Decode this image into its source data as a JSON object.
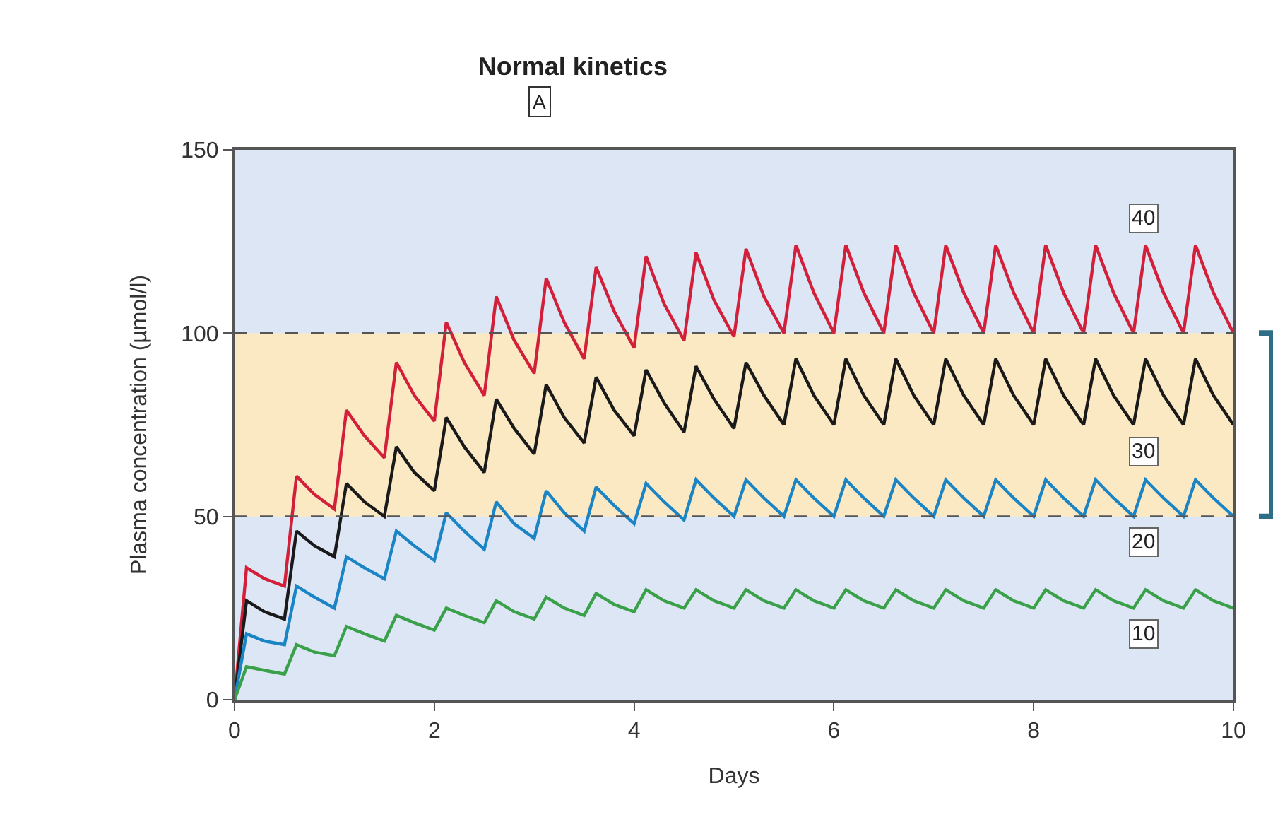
{
  "chart_data": {
    "type": "line",
    "title": "Normal kinetics",
    "xlabel": "Days",
    "ylabel": "Plasma concentration (µmol/l)",
    "annotations": [
      "A"
    ],
    "x": [
      0,
      0.12,
      0.3,
      0.5,
      0.62,
      0.8,
      1,
      1.12,
      1.3,
      1.5,
      1.62,
      1.8,
      2,
      2.12,
      2.3,
      2.5,
      2.62,
      2.8,
      3,
      3.12,
      3.3,
      3.5,
      3.62,
      3.8,
      4,
      4.12,
      4.3,
      4.5,
      4.62,
      4.8,
      5,
      5.12,
      5.3,
      5.5,
      5.62,
      5.8,
      6,
      6.12,
      6.3,
      6.5,
      6.62,
      6.8,
      7,
      7.12,
      7.3,
      7.5,
      7.62,
      7.8,
      8,
      8.12,
      8.3,
      8.5,
      8.62,
      8.8,
      9,
      9.12,
      9.3,
      9.5,
      9.62,
      9.8,
      10
    ],
    "series": [
      {
        "name": "40",
        "color": "#d3203a",
        "values": [
          0,
          36,
          33,
          31,
          61,
          56,
          52,
          79,
          72,
          66,
          92,
          83,
          76,
          103,
          92,
          83,
          110,
          98,
          89,
          115,
          103,
          93,
          118,
          106,
          96,
          121,
          108,
          98,
          122,
          109,
          99,
          123,
          110,
          100,
          124,
          111,
          100,
          124,
          111,
          100,
          124,
          111,
          100,
          124,
          111,
          100,
          124,
          111,
          100,
          124,
          111,
          100,
          124,
          111,
          100,
          124,
          111,
          100,
          124,
          111,
          100
        ]
      },
      {
        "name": "30",
        "color": "#1a1a1a",
        "values": [
          0,
          27,
          24,
          22,
          46,
          42,
          39,
          59,
          54,
          50,
          69,
          62,
          57,
          77,
          69,
          62,
          82,
          74,
          67,
          86,
          77,
          70,
          88,
          79,
          72,
          90,
          81,
          73,
          91,
          82,
          74,
          92,
          83,
          75,
          93,
          83,
          75,
          93,
          83,
          75,
          93,
          83,
          75,
          93,
          83,
          75,
          93,
          83,
          75,
          93,
          83,
          75,
          93,
          83,
          75,
          93,
          83,
          75,
          93,
          83,
          75
        ]
      },
      {
        "name": "20",
        "color": "#1b84c4",
        "values": [
          0,
          18,
          16,
          15,
          31,
          28,
          25,
          39,
          36,
          33,
          46,
          42,
          38,
          51,
          46,
          41,
          54,
          48,
          44,
          57,
          51,
          46,
          58,
          53,
          48,
          59,
          54,
          49,
          60,
          55,
          50,
          60,
          55,
          50,
          60,
          55,
          50,
          60,
          55,
          50,
          60,
          55,
          50,
          60,
          55,
          50,
          60,
          55,
          50,
          60,
          55,
          50,
          60,
          55,
          50,
          60,
          55,
          50,
          60,
          55,
          50
        ]
      },
      {
        "name": "10",
        "color": "#3aa04a",
        "values": [
          0,
          9,
          8,
          7,
          15,
          13,
          12,
          20,
          18,
          16,
          23,
          21,
          19,
          25,
          23,
          21,
          27,
          24,
          22,
          28,
          25,
          23,
          29,
          26,
          24,
          30,
          27,
          25,
          30,
          27,
          25,
          30,
          27,
          25,
          30,
          27,
          25,
          30,
          27,
          25,
          30,
          27,
          25,
          30,
          27,
          25,
          30,
          27,
          25,
          30,
          27,
          25,
          30,
          27,
          25,
          30,
          27,
          25,
          30,
          27,
          25
        ]
      }
    ],
    "xlim": [
      0,
      10
    ],
    "xticks": [
      0,
      2,
      4,
      6,
      8,
      10
    ],
    "ylim": [
      0,
      150
    ],
    "yticks": [
      0,
      50,
      100,
      150
    ],
    "bands": [
      {
        "axis": "y",
        "from": 50,
        "to": 100,
        "color": "#fbe9c4"
      }
    ],
    "ref_lines": [
      {
        "axis": "y",
        "value": 50,
        "line_style": "dashed",
        "color": "#555555"
      },
      {
        "axis": "y",
        "value": 100,
        "line_style": "dashed",
        "color": "#555555"
      }
    ],
    "grid": false,
    "legend": false,
    "line_style": "solid",
    "marker": "none"
  }
}
